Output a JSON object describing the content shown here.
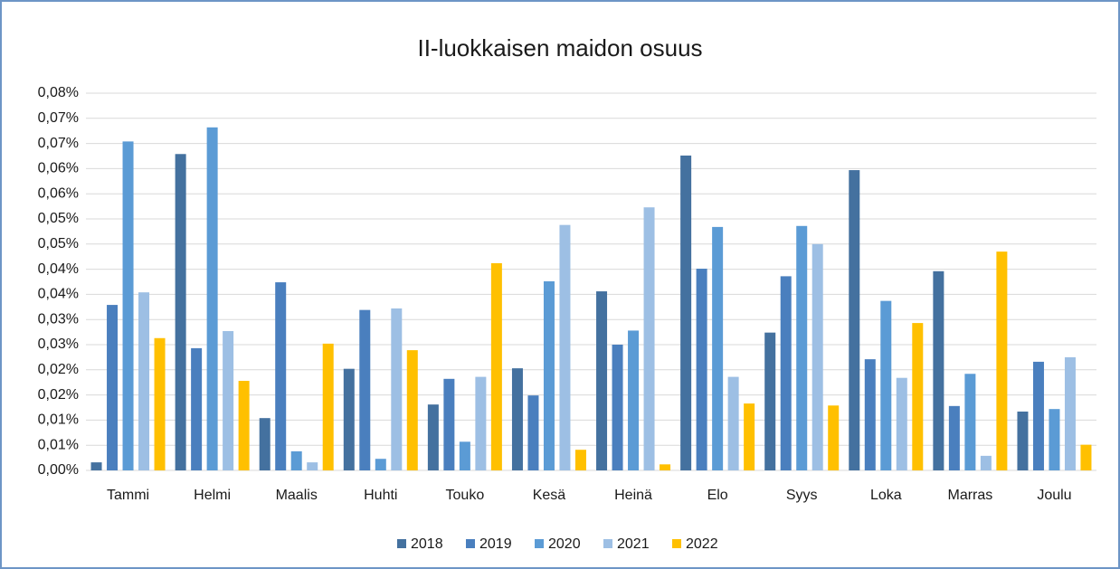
{
  "chart_data": {
    "type": "bar",
    "title": "II-luokkaisen maidon osuus",
    "categories": [
      "Tammi",
      "Helmi",
      "Maalis",
      "Huhti",
      "Touko",
      "Kesä",
      "Heinä",
      "Elo",
      "Syys",
      "Loka",
      "Marras",
      "Joulu"
    ],
    "series": [
      {
        "name": "2018",
        "color": "#44719f",
        "values": [
          0.0016,
          0.0629,
          0.0104,
          0.0202,
          0.0131,
          0.0203,
          0.0356,
          0.0626,
          0.0274,
          0.0597,
          0.0396,
          0.0117
        ]
      },
      {
        "name": "2019",
        "color": "#4a7fbe",
        "values": [
          0.0329,
          0.0243,
          0.0374,
          0.0319,
          0.0182,
          0.0149,
          0.025,
          0.0401,
          0.0386,
          0.0221,
          0.0128,
          0.0216
        ]
      },
      {
        "name": "2020",
        "color": "#5b9bd5",
        "values": [
          0.0654,
          0.0682,
          0.0038,
          0.0023,
          0.0057,
          0.0376,
          0.0278,
          0.0484,
          0.0486,
          0.0337,
          0.0192,
          0.0122
        ]
      },
      {
        "name": "2021",
        "color": "#9dbfe4",
        "values": [
          0.0354,
          0.0277,
          0.0016,
          0.0322,
          0.0186,
          0.0488,
          0.0523,
          0.0186,
          0.045,
          0.0184,
          0.0029,
          0.0225
        ]
      },
      {
        "name": "2022",
        "color": "#ffc000",
        "values": [
          0.0263,
          0.0178,
          0.0252,
          0.0239,
          0.0412,
          0.0041,
          0.0012,
          0.0133,
          0.0129,
          0.0293,
          0.0435,
          0.0051
        ]
      }
    ],
    "ylim": [
      0,
      0.075
    ],
    "yticks": [
      {
        "value": 0,
        "label": "0,00%"
      },
      {
        "value": 0.005,
        "label": "0,01%"
      },
      {
        "value": 0.01,
        "label": "0,01%"
      },
      {
        "value": 0.015,
        "label": "0,02%"
      },
      {
        "value": 0.02,
        "label": "0,02%"
      },
      {
        "value": 0.025,
        "label": "0,03%"
      },
      {
        "value": 0.03,
        "label": "0,03%"
      },
      {
        "value": 0.035,
        "label": "0,04%"
      },
      {
        "value": 0.04,
        "label": "0,04%"
      },
      {
        "value": 0.045,
        "label": "0,05%"
      },
      {
        "value": 0.05,
        "label": "0,05%"
      },
      {
        "value": 0.055,
        "label": "0,06%"
      },
      {
        "value": 0.06,
        "label": "0,06%"
      },
      {
        "value": 0.065,
        "label": "0,07%"
      },
      {
        "value": 0.07,
        "label": "0,07%"
      },
      {
        "value": 0.075,
        "label": "0,08%"
      }
    ],
    "grid": true,
    "legend": "bottom"
  }
}
